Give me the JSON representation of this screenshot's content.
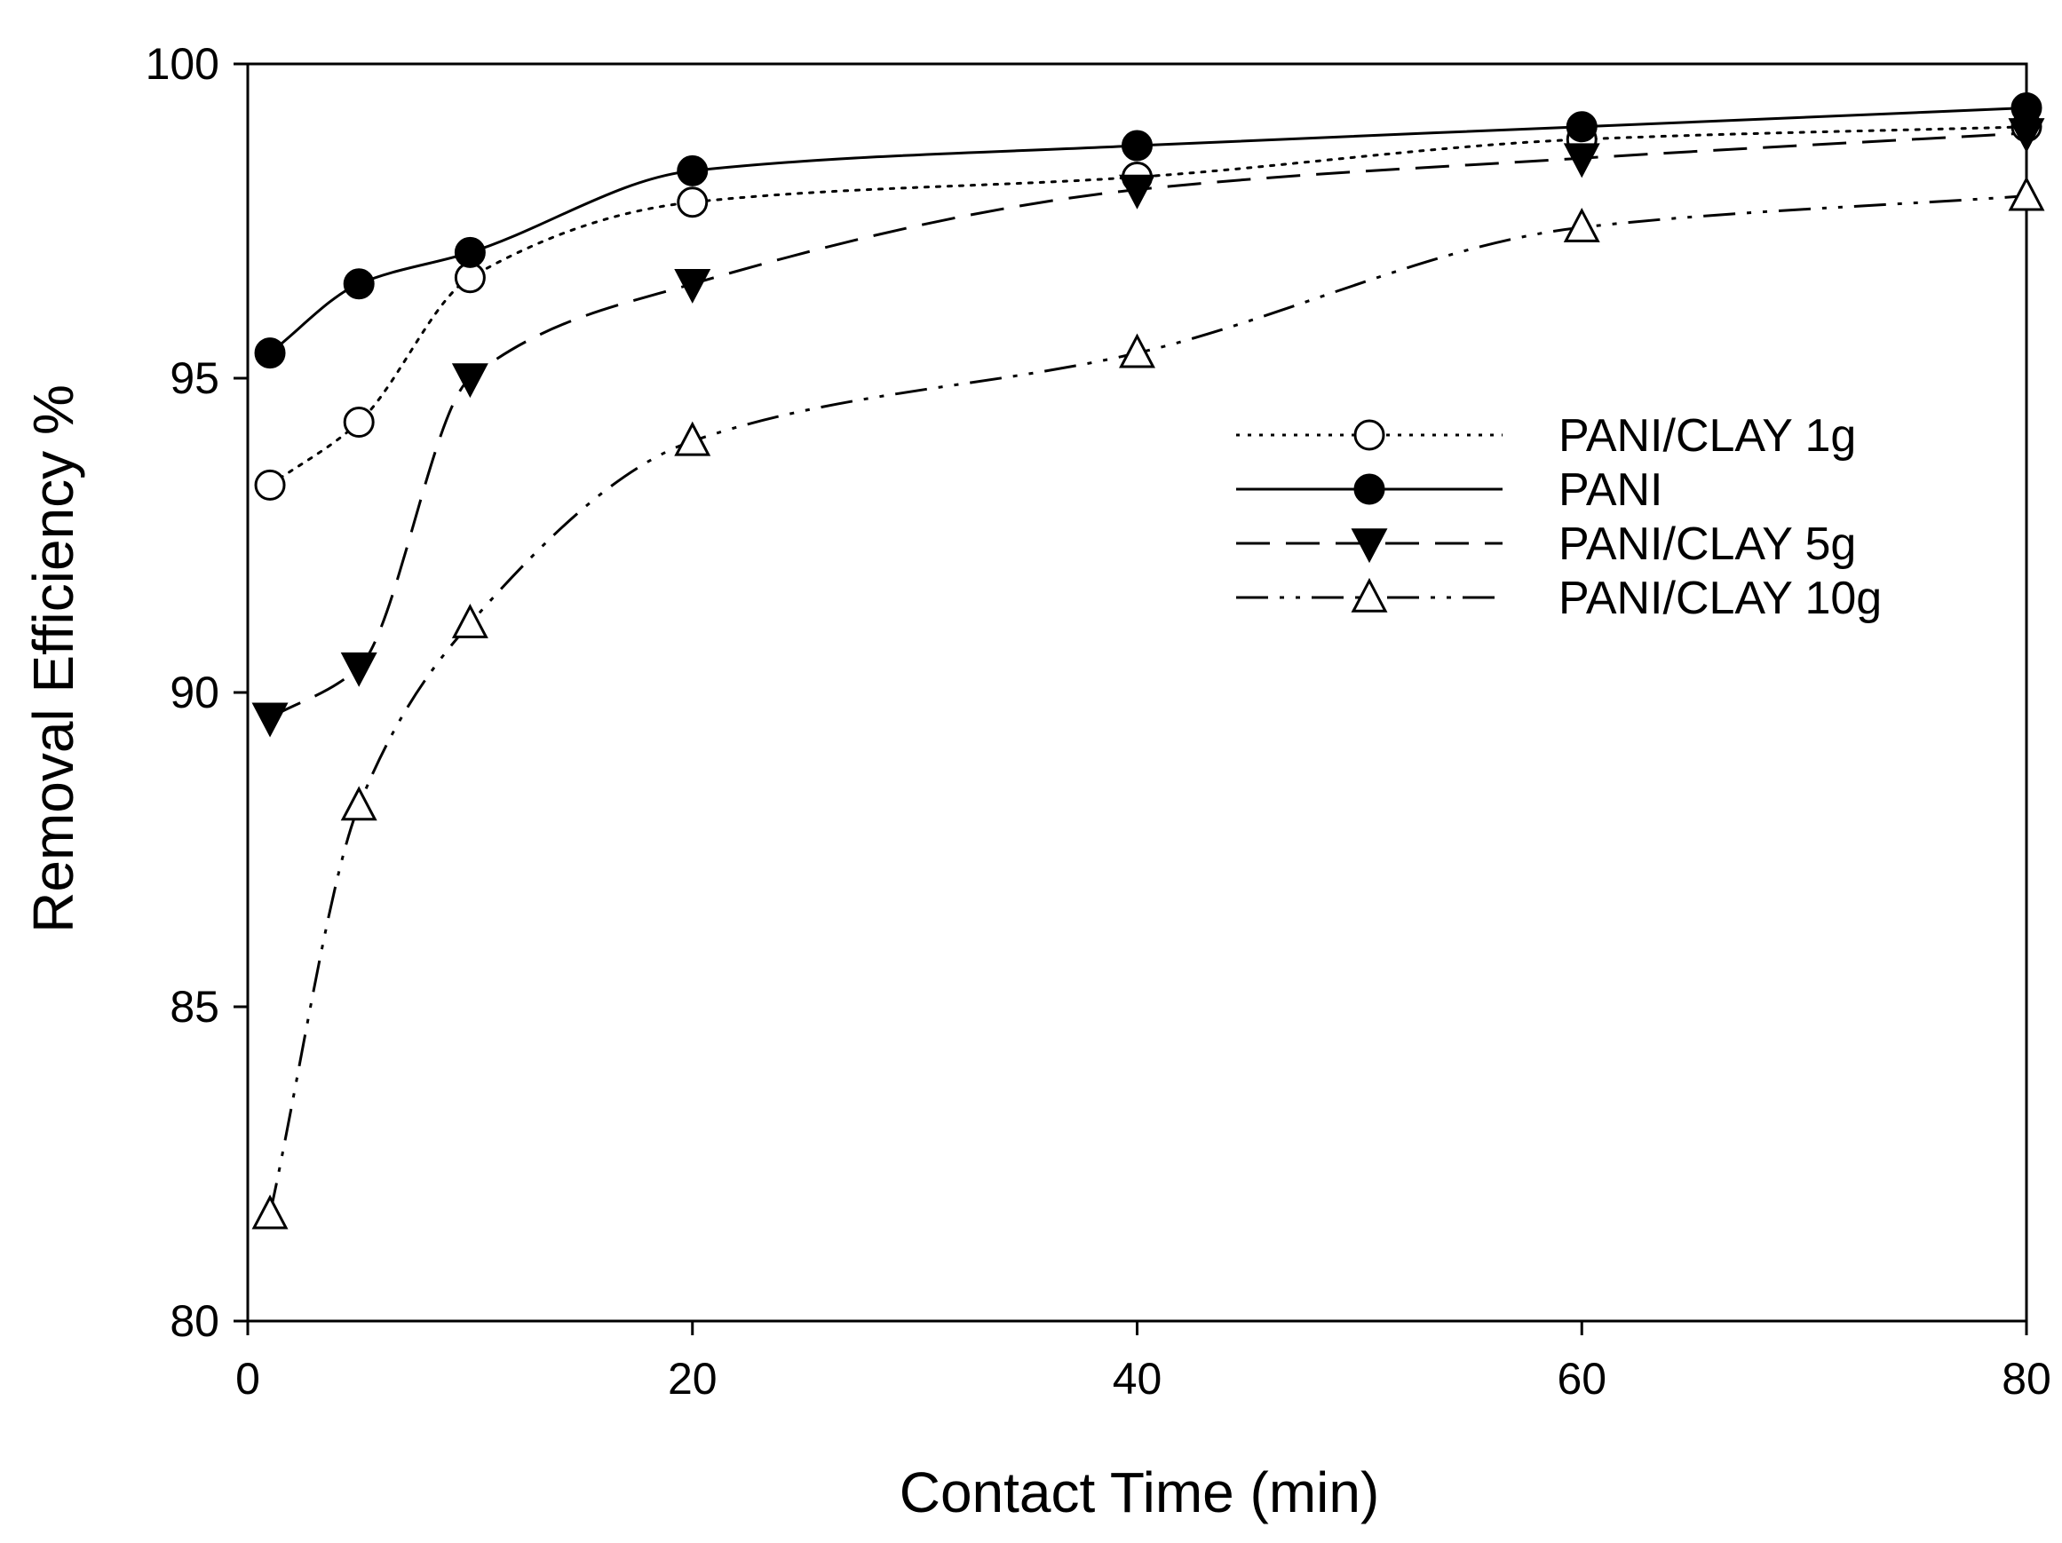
{
  "chart_data": {
    "type": "line",
    "title": "",
    "xlabel": "Contact Time (min)",
    "ylabel": "Removal Efficiency %",
    "xlim": [
      0,
      80
    ],
    "ylim": [
      80,
      100
    ],
    "xticks": [
      0,
      20,
      40,
      60,
      80
    ],
    "yticks": [
      80,
      85,
      90,
      95,
      100
    ],
    "grid": false,
    "legend_position": "center-right",
    "x": [
      1,
      5,
      10,
      20,
      40,
      60,
      80
    ],
    "series": [
      {
        "name": "PANI/CLAY 1g",
        "marker": "open-circle",
        "line_style": "dotted",
        "values": [
          93.3,
          94.3,
          96.6,
          97.8,
          98.2,
          98.8,
          99.0
        ]
      },
      {
        "name": "PANI",
        "marker": "filled-circle",
        "line_style": "solid",
        "values": [
          95.4,
          96.5,
          97.0,
          98.3,
          98.7,
          99.0,
          99.3
        ]
      },
      {
        "name": "PANI/CLAY 5g",
        "marker": "filled-triangle-down",
        "line_style": "dashed",
        "values": [
          89.6,
          90.4,
          95.0,
          96.5,
          98.0,
          98.5,
          98.9
        ]
      },
      {
        "name": "PANI/CLAY 10g",
        "marker": "open-triangle-up",
        "line_style": "dash-dot-dot",
        "values": [
          81.7,
          88.2,
          91.1,
          94.0,
          95.4,
          97.4,
          97.9
        ]
      }
    ]
  }
}
